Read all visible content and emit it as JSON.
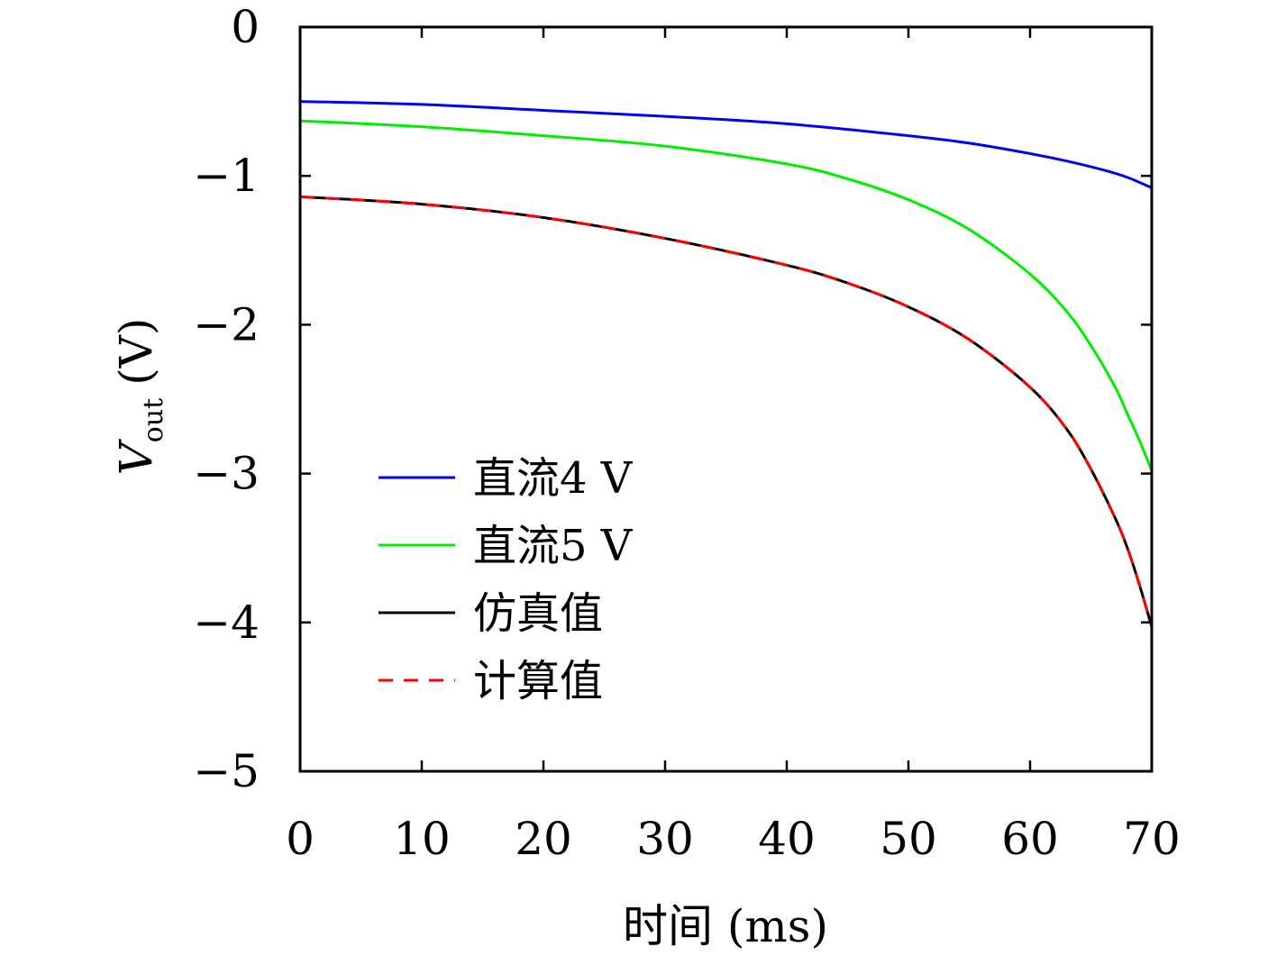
{
  "chart_data": {
    "type": "line",
    "xlabel": "时间 (ms)",
    "ylabel": {
      "symbol": "V",
      "subscript": "out",
      "unit": "(V)"
    },
    "xlim": [
      0,
      70
    ],
    "ylim": [
      -5,
      0
    ],
    "xticks": [
      0,
      10,
      20,
      30,
      40,
      50,
      60,
      70
    ],
    "yticks": [
      0,
      -1,
      -2,
      -3,
      -4,
      -5
    ],
    "xtick_labels": [
      "0",
      "10",
      "20",
      "30",
      "40",
      "50",
      "60",
      "70"
    ],
    "ytick_labels": [
      "0",
      "−1",
      "−2",
      "−3",
      "−4",
      "−5"
    ],
    "grid": false,
    "legend_position": "bottom-left",
    "series": [
      {
        "name": "直流4 V",
        "color": "#0000ff",
        "dash": "solid",
        "x": [
          0,
          10,
          20,
          30,
          40,
          50,
          55,
          60,
          63,
          66,
          68,
          70
        ],
        "y": [
          -0.5,
          -0.52,
          -0.56,
          -0.6,
          -0.65,
          -0.73,
          -0.78,
          -0.85,
          -0.9,
          -0.96,
          -1.01,
          -1.08
        ]
      },
      {
        "name": "直流5 V",
        "color": "#00ee00",
        "dash": "solid",
        "x": [
          0,
          10,
          20,
          30,
          40,
          45,
          50,
          55,
          60,
          63,
          65,
          67,
          68,
          69,
          70
        ],
        "y": [
          -0.63,
          -0.67,
          -0.73,
          -0.8,
          -0.92,
          -1.02,
          -1.16,
          -1.36,
          -1.66,
          -1.91,
          -2.14,
          -2.42,
          -2.6,
          -2.78,
          -2.98
        ]
      },
      {
        "name": "仿真值",
        "color": "#000000",
        "dash": "solid",
        "x": [
          0,
          10,
          20,
          30,
          40,
          45,
          50,
          55,
          60,
          63,
          65,
          67,
          68,
          69,
          70
        ],
        "y": [
          -1.14,
          -1.19,
          -1.28,
          -1.42,
          -1.6,
          -1.72,
          -1.88,
          -2.1,
          -2.42,
          -2.7,
          -2.97,
          -3.3,
          -3.5,
          -3.75,
          -4.03
        ]
      },
      {
        "name": "计算值",
        "color": "#ff0000",
        "dash": "dashed",
        "x": [
          0,
          10,
          20,
          30,
          40,
          45,
          50,
          55,
          60,
          63,
          65,
          67,
          68,
          69,
          70
        ],
        "y": [
          -1.14,
          -1.19,
          -1.28,
          -1.42,
          -1.6,
          -1.72,
          -1.88,
          -2.1,
          -2.42,
          -2.7,
          -2.97,
          -3.3,
          -3.5,
          -3.75,
          -4.03
        ]
      }
    ]
  }
}
